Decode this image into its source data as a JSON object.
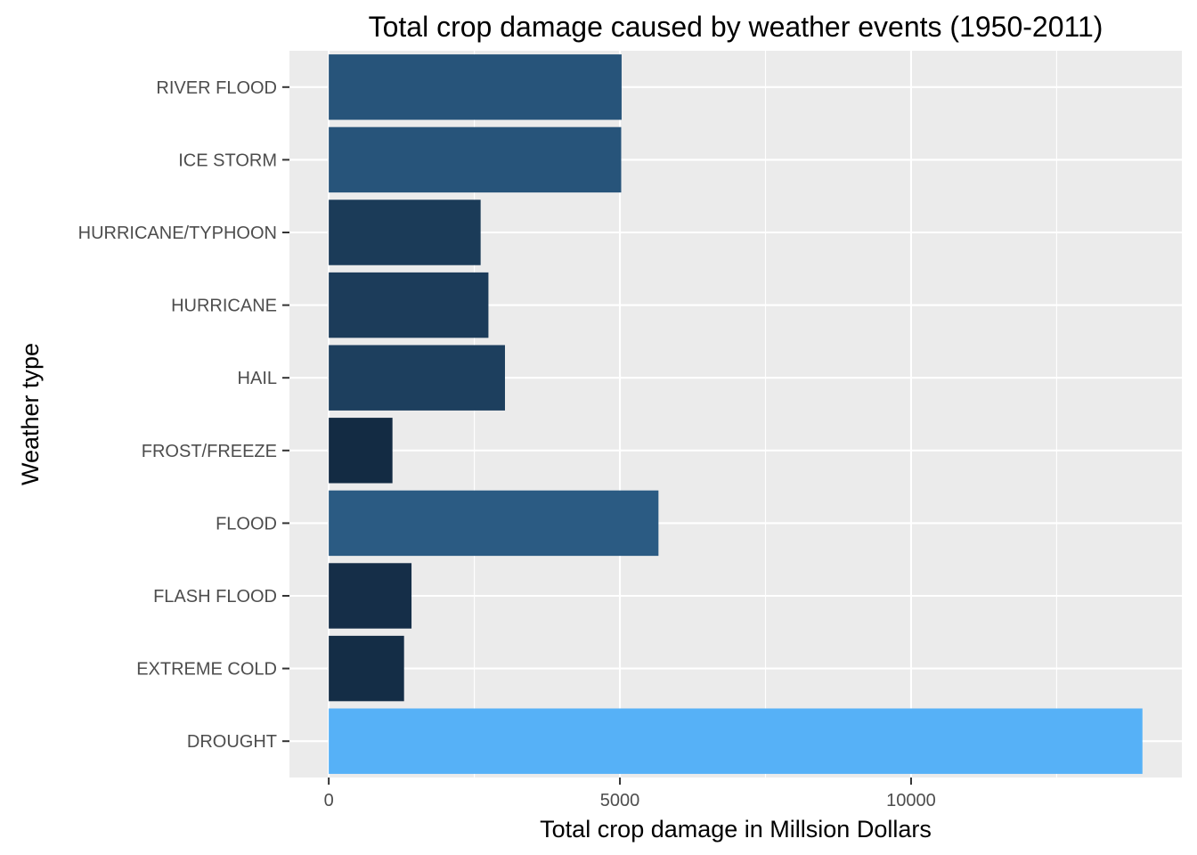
{
  "chart_data": {
    "type": "bar",
    "orientation": "horizontal",
    "title": "Total crop damage caused by weather events (1950-2011)",
    "xlabel": "Total crop damage in Millsion Dollars",
    "ylabel": "Weather type",
    "categories": [
      "DROUGHT",
      "EXTREME COLD",
      "FLASH FLOOD",
      "FLOOD",
      "FROST/FREEZE",
      "HAIL",
      "HURRICANE",
      "HURRICANE/TYPHOON",
      "ICE STORM",
      "RIVER FLOOD"
    ],
    "values": [
      13973,
      1293,
      1421,
      5662,
      1094,
      3026,
      2742,
      2608,
      5022,
      5029
    ],
    "xlim": [
      -675,
      14650
    ],
    "xticks": [
      0,
      5000,
      10000
    ],
    "xtick_labels": [
      "0",
      "5000",
      "10000"
    ],
    "grid": true,
    "legend": "none",
    "colors": {
      "panel_background": "#EBEBEB",
      "grid_major": "#FFFFFF",
      "gradient_low": "#132B43",
      "gradient_high": "#56B1F7"
    }
  }
}
